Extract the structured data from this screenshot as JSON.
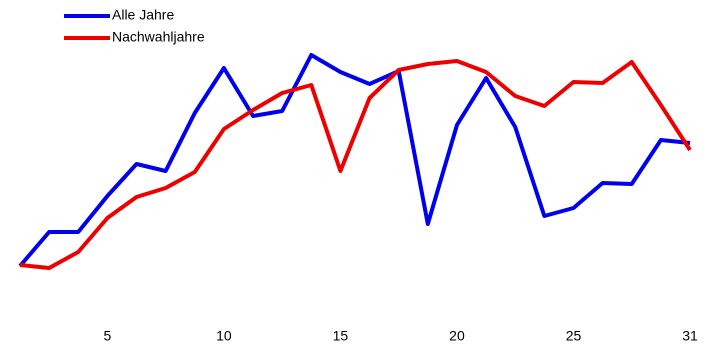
{
  "chart_data": {
    "type": "line",
    "categories": [
      null,
      null,
      null,
      "5",
      null,
      null,
      null,
      "10",
      null,
      null,
      null,
      "15",
      null,
      null,
      null,
      "20",
      null,
      null,
      null,
      "25",
      null,
      null,
      null,
      "31"
    ],
    "series": [
      {
        "name": "Alle Jahre",
        "color": "#0000ee",
        "values": [
          13.6,
          27.2,
          27.2,
          41.6,
          54.4,
          51.6,
          74.8,
          92.8,
          73.6,
          75.6,
          98,
          91.2,
          86.4,
          91.6,
          30.4,
          70,
          88.8,
          69.2,
          33.6,
          36.8,
          46.8,
          46.4,
          64,
          62.8
        ]
      },
      {
        "name": "Nachwahljahre",
        "color": "#ee0000",
        "values": [
          14,
          12.8,
          19.2,
          32.8,
          41.2,
          44.8,
          51.2,
          68.4,
          76,
          82.8,
          86,
          51.6,
          80.8,
          92,
          94.4,
          95.6,
          91.2,
          81.6,
          77.6,
          87.2,
          86.8,
          95.2,
          78,
          60
        ]
      }
    ],
    "ylim": [
      0,
      100
    ],
    "legend": "top-left"
  }
}
